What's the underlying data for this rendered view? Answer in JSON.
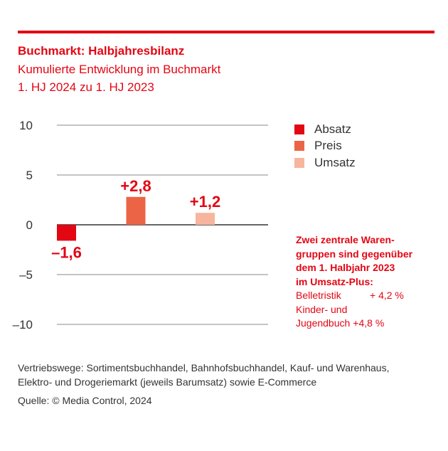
{
  "header": {
    "title": "Buchmarkt: Halbjahresbilanz",
    "subtitle_line1": "Kumulierte Entwicklung im Buchmarkt",
    "subtitle_line2": "1. HJ 2024 zu 1. HJ 2023"
  },
  "colors": {
    "accent": "#e30613",
    "absatz": "#e30613",
    "preis": "#ec6446",
    "umsatz": "#f6b59c",
    "gridline": "#888888",
    "zeroline": "#333333"
  },
  "chart_data": {
    "type": "bar",
    "title": "Buchmarkt: Halbjahresbilanz",
    "subtitle": "Kumulierte Entwicklung im Buchmarkt, 1. HJ 2024 zu 1. HJ 2023",
    "categories": [
      "Absatz",
      "Preis",
      "Umsatz"
    ],
    "values": [
      -1.6,
      2.8,
      1.2
    ],
    "data_labels": [
      "–1,6",
      "+2,8",
      "+1,2"
    ],
    "colors": [
      "#e30613",
      "#ec6446",
      "#f6b59c"
    ],
    "xlabel": "",
    "ylabel": "",
    "ylim": [
      -10,
      10
    ],
    "yticks": [
      10,
      5,
      0,
      -5,
      -10
    ],
    "ytick_labels": [
      "10",
      "5",
      "0",
      "–5",
      "–10"
    ],
    "grid": true,
    "legend": {
      "position": "right",
      "entries": [
        "Absatz",
        "Preis",
        "Umsatz"
      ]
    }
  },
  "note": {
    "heading_lines": [
      "Zwei zentrale Waren-",
      "gruppen sind gegenüber",
      "dem 1. Halbjahr 2023",
      "im Umsatz-Plus:"
    ],
    "items": [
      {
        "label": "Belletristik",
        "value": "+ 4,2 %"
      },
      {
        "label": "Kinder- und",
        "value": ""
      },
      {
        "label": "Jugendbuch",
        "value": "+4,8 %"
      }
    ]
  },
  "footer": {
    "line1": "Vertriebswege: Sortimentsbuchhandel, Bahnhofsbuchhandel, Kauf- und Warenhaus,",
    "line2": "Elektro- und Drogeriemarkt (jeweils Barumsatz) sowie E-Commerce",
    "source": "Quelle: © Media Control, 2024"
  }
}
